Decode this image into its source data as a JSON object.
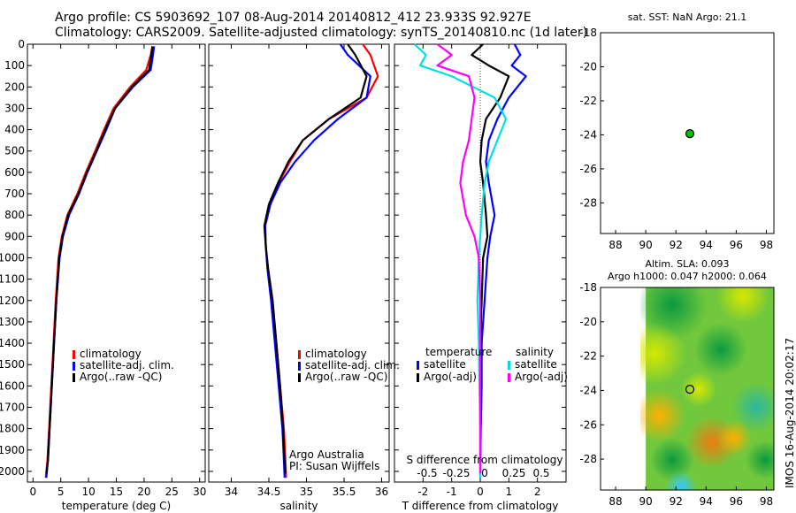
{
  "header": {
    "line1": "Argo profile: CS 5903692_107 08-Aug-2014 20140812_412 23.933S 92.927E",
    "line2": "Climatology: CARS2009. Satellite-adjusted climatology: synTS_20140810.nc (1d later)"
  },
  "side_stamp": "IMOS 16-Aug-2014 20:02:17",
  "colors": {
    "climatology": "#ff0000",
    "satellite": "#0000ff",
    "argo": "#000000",
    "salinity_satellite": "#00e0e0",
    "salinity_argo": "#ff00ff",
    "marker": "#00c000"
  },
  "chart_data": [
    {
      "id": "temperature",
      "type": "line",
      "xlabel": "temperature (deg C)",
      "ylabel": "",
      "xlim": [
        -1,
        31
      ],
      "ylim": [
        2050,
        0
      ],
      "xticks": [
        0,
        5,
        10,
        15,
        20,
        25,
        30
      ],
      "yticks": [
        0,
        100,
        200,
        300,
        400,
        500,
        600,
        700,
        800,
        900,
        1000,
        1100,
        1200,
        1300,
        1400,
        1500,
        1600,
        1700,
        1800,
        1900,
        2000
      ],
      "legend_position": "lower-middle",
      "legend": [
        "climatology",
        "satellite-adj. clim.",
        "Argo(..raw -QC)"
      ],
      "series": [
        {
          "name": "climatology",
          "color": "#ff0000",
          "x": [
            21.5,
            21.2,
            20.4,
            17.5,
            14.5,
            12.8,
            11.2,
            9.5,
            8.0,
            6.2,
            5.2,
            4.6,
            4.1,
            3.7,
            3.3,
            2.9,
            2.6,
            2.3
          ],
          "y": [
            10,
            50,
            120,
            200,
            300,
            400,
            500,
            600,
            700,
            800,
            900,
            1000,
            1200,
            1400,
            1600,
            1800,
            1950,
            2030
          ]
        },
        {
          "name": "satellite-adj. clim.",
          "color": "#0000ff",
          "x": [
            21.8,
            21.6,
            21.2,
            18.0,
            14.8,
            13.2,
            11.5,
            9.8,
            8.3,
            6.5,
            5.4,
            4.8,
            4.2,
            3.8,
            3.4,
            3.0,
            2.7,
            2.4
          ],
          "y": [
            10,
            50,
            120,
            200,
            300,
            400,
            500,
            600,
            700,
            800,
            900,
            1000,
            1200,
            1400,
            1600,
            1800,
            1950,
            2030
          ]
        },
        {
          "name": "Argo(..raw -QC)",
          "color": "#000000",
          "x": [
            21.5,
            21.3,
            20.9,
            17.8,
            14.8,
            13.0,
            11.4,
            9.7,
            8.2,
            6.3,
            5.3,
            4.7,
            4.2,
            3.8,
            3.4,
            3.0,
            2.7,
            2.4
          ],
          "y": [
            10,
            50,
            120,
            200,
            300,
            400,
            500,
            600,
            700,
            800,
            900,
            1000,
            1200,
            1400,
            1600,
            1800,
            1950,
            2010
          ]
        }
      ]
    },
    {
      "id": "salinity",
      "type": "line",
      "xlabel": "salinity",
      "ylabel": "",
      "xlim": [
        33.7,
        36.1
      ],
      "ylim": [
        2050,
        0
      ],
      "xticks": [
        34,
        34.5,
        35,
        35.5,
        36
      ],
      "legend_position": "lower-right",
      "legend": [
        "climatology",
        "satellite-adj. clim.",
        "Argo(..raw -QC)"
      ],
      "annotations": [
        "Argo Australia",
        "PI: Susan Wijffels"
      ],
      "series": [
        {
          "name": "climatology",
          "color": "#ff0000",
          "x": [
            35.75,
            35.85,
            35.95,
            35.8,
            35.3,
            34.95,
            34.78,
            34.63,
            34.52,
            34.45,
            34.46,
            34.49,
            34.55,
            34.6,
            34.65,
            34.7,
            34.72,
            34.73
          ],
          "y": [
            0,
            50,
            150,
            250,
            350,
            450,
            550,
            650,
            750,
            850,
            950,
            1050,
            1200,
            1400,
            1600,
            1800,
            1950,
            2030
          ]
        },
        {
          "name": "satellite-adj. clim.",
          "color": "#0000ff",
          "x": [
            35.45,
            35.55,
            35.85,
            35.8,
            35.42,
            35.1,
            34.85,
            34.65,
            34.52,
            34.45,
            34.46,
            34.48,
            34.53,
            34.58,
            34.63,
            34.68,
            34.7,
            34.71
          ],
          "y": [
            0,
            50,
            150,
            250,
            350,
            450,
            550,
            650,
            750,
            850,
            950,
            1050,
            1200,
            1400,
            1600,
            1800,
            1950,
            2030
          ]
        },
        {
          "name": "Argo(..raw -QC)",
          "color": "#000000",
          "x": [
            35.55,
            35.65,
            35.8,
            35.72,
            35.3,
            34.95,
            34.76,
            34.62,
            34.5,
            34.44,
            34.46,
            34.49,
            34.55,
            34.6,
            34.65,
            34.69,
            34.71,
            34.72
          ],
          "y": [
            0,
            50,
            150,
            250,
            350,
            450,
            550,
            650,
            750,
            850,
            950,
            1050,
            1200,
            1400,
            1600,
            1800,
            1950,
            2010
          ]
        }
      ]
    },
    {
      "id": "differences",
      "type": "line",
      "xlabel": "T difference from climatology",
      "xlabel_top": "S difference from climatology",
      "xlim": [
        -3,
        3
      ],
      "ylim": [
        2050,
        0
      ],
      "xticks": [
        -2,
        -1,
        0,
        1,
        2
      ],
      "xtick_labels": [
        "-2",
        "-1",
        "0",
        "1",
        "2"
      ],
      "top_ticks": [
        "-0.5",
        "-0.25",
        "0",
        "0.25",
        "0.5"
      ],
      "legend_position": "lower-middle",
      "legend_titles": [
        "temperature",
        "salinity"
      ],
      "legend": [
        "satellite",
        "Argo(-adj)",
        "satellite",
        "Argo(-adj)"
      ],
      "series": [
        {
          "name": "temperature satellite",
          "color": "#0000ff",
          "x": [
            1.2,
            1.4,
            1.1,
            1.6,
            1.0,
            0.6,
            0.3,
            0.2,
            0.3,
            0.5,
            0.35,
            0.25,
            0.15,
            0.05,
            0.05,
            0.02,
            0.0
          ],
          "y": [
            0,
            50,
            100,
            150,
            250,
            350,
            450,
            550,
            650,
            800,
            900,
            1000,
            1200,
            1400,
            1600,
            1800,
            2030
          ]
        },
        {
          "name": "temperature Argo(-adj)",
          "color": "#000000",
          "x": [
            0.1,
            -0.3,
            0.3,
            1.0,
            0.7,
            0.2,
            0.05,
            0.0,
            0.1,
            0.2,
            0.25,
            0.1,
            0.05,
            0.0,
            0.0,
            0.0,
            0.0
          ],
          "y": [
            0,
            50,
            100,
            150,
            250,
            350,
            450,
            550,
            650,
            800,
            900,
            1000,
            1200,
            1400,
            1600,
            1800,
            2010
          ]
        },
        {
          "name": "salinity satellite",
          "color": "#00e0e0",
          "x": [
            -2.3,
            -1.9,
            -2.1,
            -1.0,
            0.5,
            0.9,
            0.6,
            0.3,
            0.15,
            0.05,
            0.0,
            -0.05,
            -0.1,
            -0.05,
            -0.03,
            0.0,
            0.0
          ],
          "y": [
            0,
            50,
            100,
            150,
            250,
            350,
            450,
            550,
            650,
            800,
            900,
            1000,
            1200,
            1400,
            1600,
            1800,
            2030
          ]
        },
        {
          "name": "salinity Argo(-adj)",
          "color": "#ff00ff",
          "x": [
            -1.5,
            -1.0,
            -1.5,
            -0.4,
            -0.2,
            -0.3,
            -0.4,
            -0.6,
            -0.7,
            -0.5,
            -0.2,
            -0.05,
            0.0,
            0.0,
            0.0,
            0.0,
            0.0
          ],
          "y": [
            0,
            50,
            100,
            150,
            250,
            350,
            450,
            550,
            650,
            800,
            900,
            1000,
            1200,
            1400,
            1600,
            1800,
            2010
          ]
        }
      ]
    },
    {
      "id": "sst_map",
      "type": "scatter",
      "title": "sat. SST: NaN Argo: 21.1",
      "xlim": [
        87,
        98.5
      ],
      "ylim": [
        -29.8,
        -18
      ],
      "xticks": [
        88,
        90,
        92,
        94,
        96,
        98
      ],
      "yticks": [
        -18,
        -20,
        -22,
        -24,
        -26,
        -28
      ],
      "points": [
        {
          "x": 92.927,
          "y": -23.933
        }
      ]
    },
    {
      "id": "sla_map",
      "type": "heatmap",
      "title_lines": [
        "Altim. SLA: 0.093",
        "Argo h1000: 0.047 h2000: 0.064"
      ],
      "xlim": [
        87,
        98.5
      ],
      "ylim": [
        -29.8,
        -18
      ],
      "xticks": [
        88,
        90,
        92,
        94,
        96,
        98
      ],
      "yticks": [
        -18,
        -20,
        -22,
        -24,
        -26,
        -28
      ],
      "data_extent_x": [
        90,
        98.5
      ],
      "points": [
        {
          "x": 92.927,
          "y": -23.933
        }
      ]
    }
  ]
}
